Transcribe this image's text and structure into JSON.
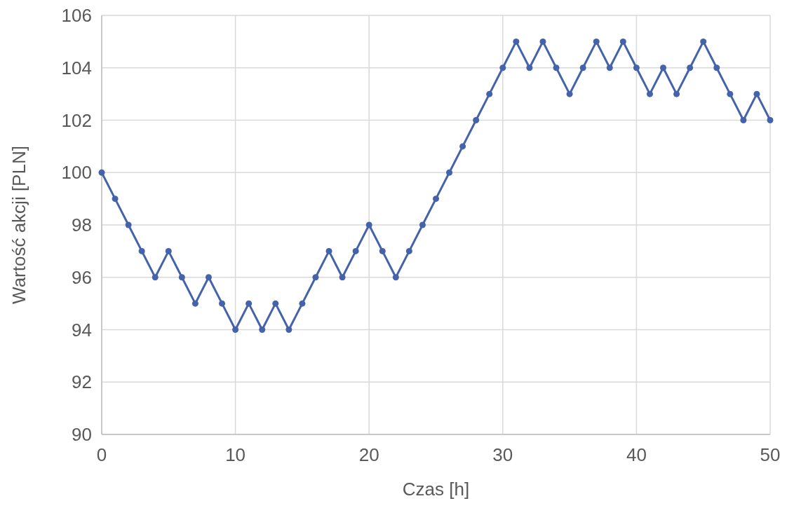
{
  "chart_data": {
    "type": "line",
    "xlabel": "Czas [h]",
    "ylabel": "Wartość akcji [PLN]",
    "x": [
      0,
      1,
      2,
      3,
      4,
      5,
      6,
      7,
      8,
      9,
      10,
      11,
      12,
      13,
      14,
      15,
      16,
      17,
      18,
      19,
      20,
      21,
      22,
      23,
      24,
      25,
      26,
      27,
      28,
      29,
      30,
      31,
      32,
      33,
      34,
      35,
      36,
      37,
      38,
      39,
      40,
      41,
      42,
      43,
      44,
      45,
      46,
      47,
      48,
      49,
      50
    ],
    "series": [
      {
        "color": "#4463aa",
        "values": [
          100,
          99,
          98,
          97,
          96,
          97,
          96,
          95,
          96,
          95,
          94,
          95,
          94,
          95,
          94,
          95,
          96,
          97,
          96,
          97,
          98,
          97,
          96,
          97,
          98,
          99,
          100,
          101,
          102,
          103,
          104,
          105,
          104,
          105,
          104,
          103,
          104,
          105,
          104,
          105,
          104,
          103,
          104,
          103,
          104,
          105,
          104,
          103,
          102,
          103,
          102
        ]
      }
    ],
    "xlim": [
      0,
      50
    ],
    "xticks": [
      0,
      10,
      20,
      30,
      40,
      50
    ],
    "ylim": [
      90,
      106
    ],
    "yticks": [
      90,
      92,
      94,
      96,
      98,
      100,
      102,
      104,
      106
    ],
    "grid": true,
    "marker": "circle",
    "line_style": "solid"
  }
}
